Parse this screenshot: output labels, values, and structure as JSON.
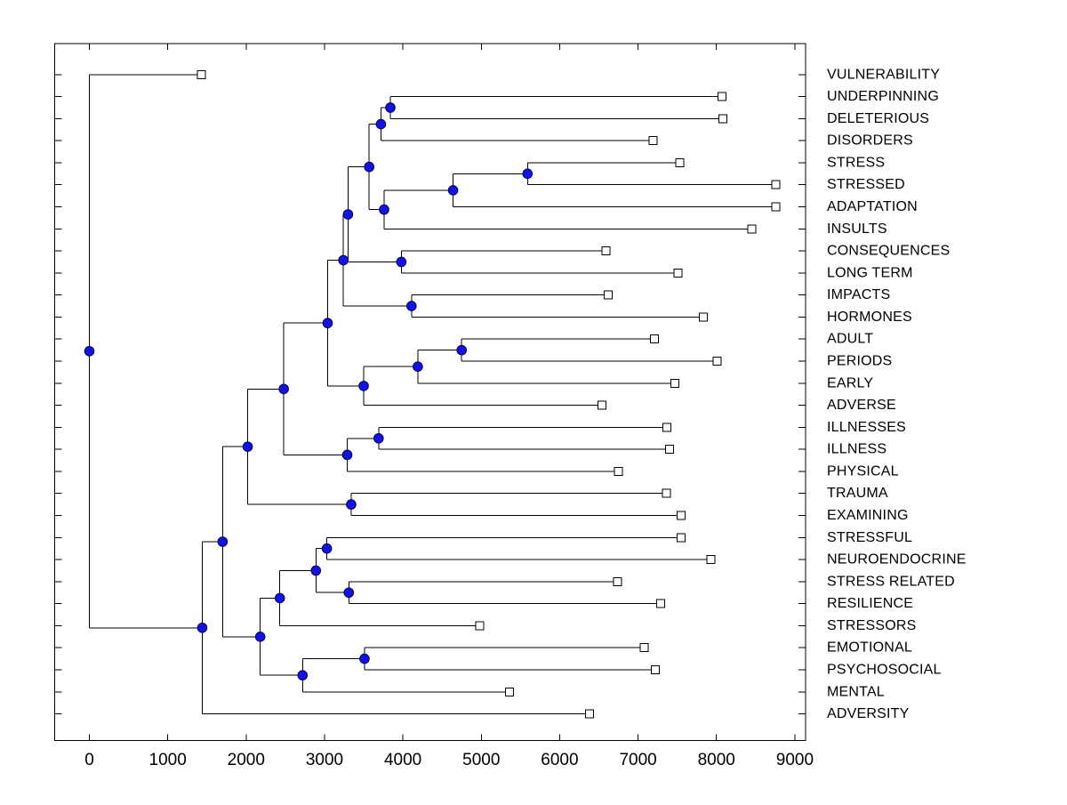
{
  "figure": {
    "background": "#ffffff",
    "description": "Horizontal dendrogram (hierarchical cluster tree) of stress-related vocabulary terms"
  },
  "chart_data": {
    "type": "dendrogram",
    "orientation": "horizontal-left-to-right",
    "title": "",
    "xlabel": "",
    "ylabel": "",
    "x_axis": {
      "ticks": [
        0,
        1000,
        2000,
        3000,
        4000,
        5000,
        6000,
        7000,
        8000,
        9000
      ],
      "range": [
        -450,
        9150
      ],
      "grid": false
    },
    "colors": {
      "branch": "#000000",
      "node_fill": "#1212e8",
      "node_edge": "#000050",
      "leaf_fill": "#ffffff",
      "leaf_edge": "#000000",
      "axis": "#000000",
      "background": "#ffffff"
    },
    "markers": {
      "internal_node": "filled-circle",
      "leaf": "open-square"
    },
    "leaves": [
      {
        "label": "VULNERABILITY",
        "value": 1430
      },
      {
        "label": "UNDERPINNING",
        "value": 8070
      },
      {
        "label": "DELETERIOUS",
        "value": 8080
      },
      {
        "label": "DISORDERS",
        "value": 7190
      },
      {
        "label": "STRESS",
        "value": 7530
      },
      {
        "label": "STRESSED",
        "value": 8760
      },
      {
        "label": "ADAPTATION",
        "value": 8760
      },
      {
        "label": "INSULTS",
        "value": 8450
      },
      {
        "label": "CONSEQUENCES",
        "value": 6590
      },
      {
        "label": "LONG TERM",
        "value": 7510
      },
      {
        "label": "IMPACTS",
        "value": 6620
      },
      {
        "label": "HORMONES",
        "value": 7830
      },
      {
        "label": "ADULT",
        "value": 7210
      },
      {
        "label": "PERIODS",
        "value": 8010
      },
      {
        "label": "EARLY",
        "value": 7470
      },
      {
        "label": "ADVERSE",
        "value": 6540
      },
      {
        "label": "ILLNESSES",
        "value": 7370
      },
      {
        "label": "ILLNESS",
        "value": 7400
      },
      {
        "label": "PHYSICAL",
        "value": 6750
      },
      {
        "label": "TRAUMA",
        "value": 7360
      },
      {
        "label": "EXAMINING",
        "value": 7550
      },
      {
        "label": "STRESSFUL",
        "value": 7550
      },
      {
        "label": "NEUROENDOCRINE",
        "value": 7930
      },
      {
        "label": "STRESS RELATED",
        "value": 6740
      },
      {
        "label": "RESILIENCE",
        "value": 7290
      },
      {
        "label": "STRESSORS",
        "value": 4980
      },
      {
        "label": "EMOTIONAL",
        "value": 7080
      },
      {
        "label": "PSYCHOSOCIAL",
        "value": 7220
      },
      {
        "label": "MENTAL",
        "value": 5360
      },
      {
        "label": "ADVERSITY",
        "value": 6380
      }
    ],
    "nodes": [
      {
        "id": "n1",
        "children": [
          "UNDERPINNING",
          "DELETERIOUS"
        ],
        "value": 3840
      },
      {
        "id": "n2",
        "children": [
          "n1",
          "DISORDERS"
        ],
        "value": 3720
      },
      {
        "id": "n3",
        "children": [
          "STRESS",
          "STRESSED"
        ],
        "value": 5590
      },
      {
        "id": "n4",
        "children": [
          "n3",
          "ADAPTATION"
        ],
        "value": 4640
      },
      {
        "id": "n5",
        "children": [
          "n4",
          "INSULTS"
        ],
        "value": 3760
      },
      {
        "id": "n6",
        "children": [
          "n2",
          "n5"
        ],
        "value": 3570
      },
      {
        "id": "n7",
        "children": [
          "CONSEQUENCES",
          "LONG TERM"
        ],
        "value": 3980
      },
      {
        "id": "n8",
        "children": [
          "n6",
          "n7"
        ],
        "value": 3300
      },
      {
        "id": "n9",
        "children": [
          "IMPACTS",
          "HORMONES"
        ],
        "value": 4110
      },
      {
        "id": "n10",
        "children": [
          "n8",
          "n9"
        ],
        "value": 3240
      },
      {
        "id": "n11",
        "children": [
          "ADULT",
          "PERIODS"
        ],
        "value": 4750
      },
      {
        "id": "n12",
        "children": [
          "n11",
          "EARLY"
        ],
        "value": 4190
      },
      {
        "id": "n13",
        "children": [
          "n12",
          "ADVERSE"
        ],
        "value": 3500
      },
      {
        "id": "n14",
        "children": [
          "n10",
          "n13"
        ],
        "value": 3040
      },
      {
        "id": "n15",
        "children": [
          "ILLNESSES",
          "ILLNESS"
        ],
        "value": 3690
      },
      {
        "id": "n16",
        "children": [
          "n15",
          "PHYSICAL"
        ],
        "value": 3290
      },
      {
        "id": "n17",
        "children": [
          "n14",
          "n16"
        ],
        "value": 2480
      },
      {
        "id": "n18",
        "children": [
          "TRAUMA",
          "EXAMINING"
        ],
        "value": 3340
      },
      {
        "id": "n19",
        "children": [
          "n17",
          "n18"
        ],
        "value": 2020
      },
      {
        "id": "n20",
        "children": [
          "STRESSFUL",
          "NEUROENDOCRINE"
        ],
        "value": 3030
      },
      {
        "id": "n21",
        "children": [
          "STRESS RELATED",
          "RESILIENCE"
        ],
        "value": 3310
      },
      {
        "id": "n22",
        "children": [
          "n20",
          "n21"
        ],
        "value": 2890
      },
      {
        "id": "n23",
        "children": [
          "n22",
          "STRESSORS"
        ],
        "value": 2430
      },
      {
        "id": "n24",
        "children": [
          "EMOTIONAL",
          "PSYCHOSOCIAL"
        ],
        "value": 3510
      },
      {
        "id": "n25",
        "children": [
          "n24",
          "MENTAL"
        ],
        "value": 2720
      },
      {
        "id": "n26",
        "children": [
          "n23",
          "n25"
        ],
        "value": 2180
      },
      {
        "id": "n27",
        "children": [
          "n19",
          "n26"
        ],
        "value": 1700
      },
      {
        "id": "n28",
        "children": [
          "n27",
          "ADVERSITY"
        ],
        "value": 1440
      },
      {
        "id": "root",
        "children": [
          "VULNERABILITY",
          "n28"
        ],
        "value": 0
      }
    ]
  }
}
